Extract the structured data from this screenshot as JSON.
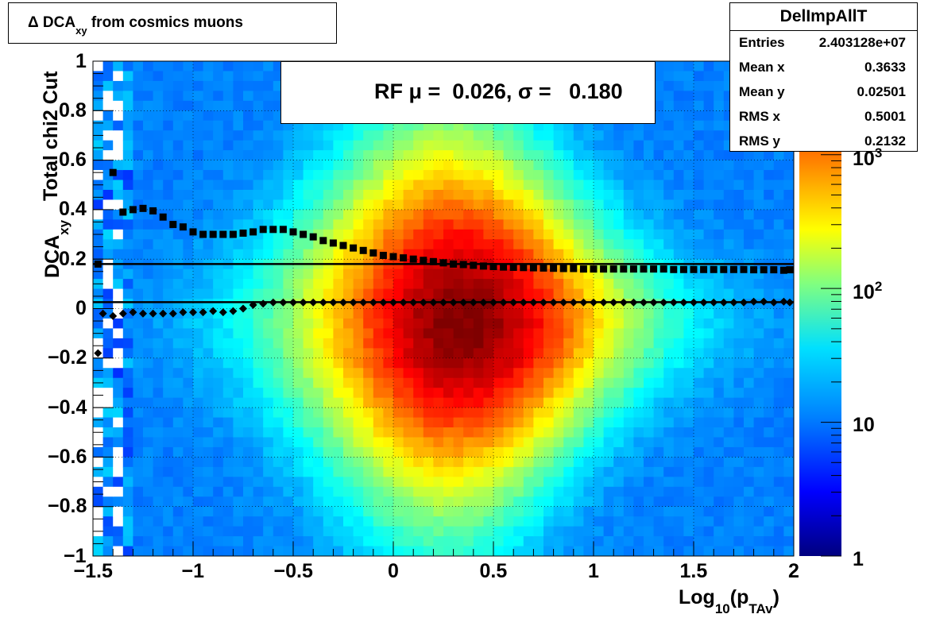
{
  "title": {
    "prefix": "Δ DCA",
    "sub": "xy",
    "suffix": " from cosmics muons"
  },
  "stats": {
    "name": "DelImpAllT",
    "rows": [
      {
        "key": "Entries",
        "value": "2.403128e+07"
      },
      {
        "key": "Mean x",
        "value": "0.3633"
      },
      {
        "key": "Mean y",
        "value": "0.02501"
      },
      {
        "key": "RMS x",
        "value": "0.5001"
      },
      {
        "key": "RMS y",
        "value": "0.2132"
      }
    ]
  },
  "legend": {
    "text": "RF μ =  0.026, σ =   0.180"
  },
  "colors": {
    "palette": [
      "#00007f",
      "#0000ff",
      "#0080ff",
      "#00ffff",
      "#80ff80",
      "#ffff00",
      "#ff8000",
      "#ff0000",
      "#7f0000"
    ],
    "markers": "#000000"
  },
  "chart_data": {
    "type": "heatmap",
    "xlabel": {
      "main": "Log",
      "sub1": "10",
      "paren_open": "(p",
      "sub2": "TAv",
      "paren_close": ")"
    },
    "ylabel": {
      "main": "DCA",
      "sub": "xy"
    },
    "ylabel2": "Total chi2 Cut",
    "xlim": [
      -1.5,
      2
    ],
    "ylim": [
      -1,
      1
    ],
    "grid": true,
    "x_ticks": [
      {
        "v": -1.5,
        "label": "−1.5"
      },
      {
        "v": -1,
        "label": "−1"
      },
      {
        "v": -0.5,
        "label": "−0.5"
      },
      {
        "v": 0,
        "label": "0"
      },
      {
        "v": 0.5,
        "label": "0.5"
      },
      {
        "v": 1,
        "label": "1"
      },
      {
        "v": 1.5,
        "label": "1.5"
      },
      {
        "v": 2,
        "label": "2"
      }
    ],
    "y_ticks": [
      {
        "v": 1,
        "label": "1"
      },
      {
        "v": 0.8,
        "label": "0.8"
      },
      {
        "v": 0.6,
        "label": "0.6"
      },
      {
        "v": 0.4,
        "label": "0.4"
      },
      {
        "v": 0.2,
        "label": "0.2"
      },
      {
        "v": 0,
        "label": "0"
      },
      {
        "v": -0.2,
        "label": "−0.2"
      },
      {
        "v": -0.4,
        "label": "−0.4"
      },
      {
        "v": -0.6,
        "label": "−0.6"
      },
      {
        "v": -0.8,
        "label": "−0.8"
      },
      {
        "v": -1,
        "label": "−1"
      }
    ],
    "z_scale": "log",
    "zlim": [
      1,
      5000
    ],
    "z_ticks": [
      {
        "v": 1,
        "base": "1",
        "exp": ""
      },
      {
        "v": 10,
        "base": "10",
        "exp": ""
      },
      {
        "v": 100,
        "base": "10",
        "exp": "2"
      },
      {
        "v": 1000,
        "base": "10",
        "exp": "3"
      }
    ],
    "hlines": [
      0.18,
      0.026
    ],
    "series": [
      {
        "name": "RF",
        "marker": "diamond",
        "x": [
          -1.475,
          -1.45,
          -1.4,
          -1.35,
          -1.3,
          -1.25,
          -1.2,
          -1.15,
          -1.1,
          -1.05,
          -1.0,
          -0.95,
          -0.9,
          -0.85,
          -0.8,
          -0.75,
          -0.7,
          -0.65,
          -0.6,
          -0.55,
          -0.5,
          -0.45,
          -0.4,
          -0.35,
          -0.3,
          -0.25,
          -0.2,
          -0.15,
          -0.1,
          -0.05,
          0.0,
          0.05,
          0.1,
          0.15,
          0.2,
          0.25,
          0.3,
          0.35,
          0.4,
          0.45,
          0.5,
          0.55,
          0.6,
          0.65,
          0.7,
          0.75,
          0.8,
          0.85,
          0.9,
          0.95,
          1.0,
          1.05,
          1.1,
          1.15,
          1.2,
          1.25,
          1.3,
          1.35,
          1.4,
          1.45,
          1.5,
          1.55,
          1.6,
          1.65,
          1.7,
          1.75,
          1.8,
          1.85,
          1.9,
          1.95,
          1.98
        ],
        "y": [
          -0.18,
          -0.02,
          -0.03,
          -0.02,
          -0.015,
          -0.02,
          -0.02,
          -0.02,
          -0.02,
          -0.015,
          -0.015,
          -0.015,
          -0.01,
          -0.015,
          -0.01,
          -0.0,
          0.015,
          0.02,
          0.025,
          0.025,
          0.025,
          0.025,
          0.025,
          0.025,
          0.025,
          0.025,
          0.025,
          0.025,
          0.025,
          0.025,
          0.025,
          0.025,
          0.025,
          0.025,
          0.025,
          0.025,
          0.025,
          0.025,
          0.025,
          0.025,
          0.025,
          0.025,
          0.025,
          0.025,
          0.025,
          0.025,
          0.025,
          0.025,
          0.025,
          0.025,
          0.025,
          0.025,
          0.025,
          0.025,
          0.025,
          0.025,
          0.025,
          0.025,
          0.025,
          0.025,
          0.025,
          0.025,
          0.025,
          0.025,
          0.025,
          0.025,
          0.028,
          0.028,
          0.025,
          0.028,
          0.025
        ]
      },
      {
        "name": "σ",
        "marker": "square",
        "x": [
          -1.475,
          -1.4,
          -1.35,
          -1.3,
          -1.25,
          -1.2,
          -1.15,
          -1.1,
          -1.05,
          -1.0,
          -0.95,
          -0.9,
          -0.85,
          -0.8,
          -0.75,
          -0.7,
          -0.65,
          -0.6,
          -0.55,
          -0.5,
          -0.45,
          -0.4,
          -0.35,
          -0.3,
          -0.25,
          -0.2,
          -0.15,
          -0.1,
          -0.05,
          0.0,
          0.05,
          0.1,
          0.15,
          0.2,
          0.25,
          0.3,
          0.35,
          0.4,
          0.45,
          0.5,
          0.55,
          0.6,
          0.65,
          0.7,
          0.75,
          0.8,
          0.85,
          0.9,
          0.95,
          1.0,
          1.05,
          1.1,
          1.15,
          1.2,
          1.25,
          1.3,
          1.35,
          1.4,
          1.45,
          1.5,
          1.55,
          1.6,
          1.65,
          1.7,
          1.75,
          1.8,
          1.85,
          1.9,
          1.95,
          1.98
        ],
        "y": [
          0.18,
          0.55,
          0.39,
          0.4,
          0.405,
          0.395,
          0.37,
          0.34,
          0.33,
          0.31,
          0.3,
          0.3,
          0.3,
          0.3,
          0.305,
          0.31,
          0.32,
          0.32,
          0.32,
          0.31,
          0.3,
          0.29,
          0.275,
          0.265,
          0.255,
          0.245,
          0.235,
          0.225,
          0.215,
          0.21,
          0.205,
          0.2,
          0.195,
          0.19,
          0.185,
          0.18,
          0.178,
          0.175,
          0.172,
          0.17,
          0.168,
          0.167,
          0.166,
          0.165,
          0.164,
          0.163,
          0.162,
          0.162,
          0.16,
          0.16,
          0.16,
          0.16,
          0.16,
          0.16,
          0.16,
          0.16,
          0.16,
          0.158,
          0.158,
          0.158,
          0.158,
          0.158,
          0.158,
          0.158,
          0.158,
          0.157,
          0.157,
          0.157,
          0.155,
          0.157
        ]
      }
    ]
  }
}
